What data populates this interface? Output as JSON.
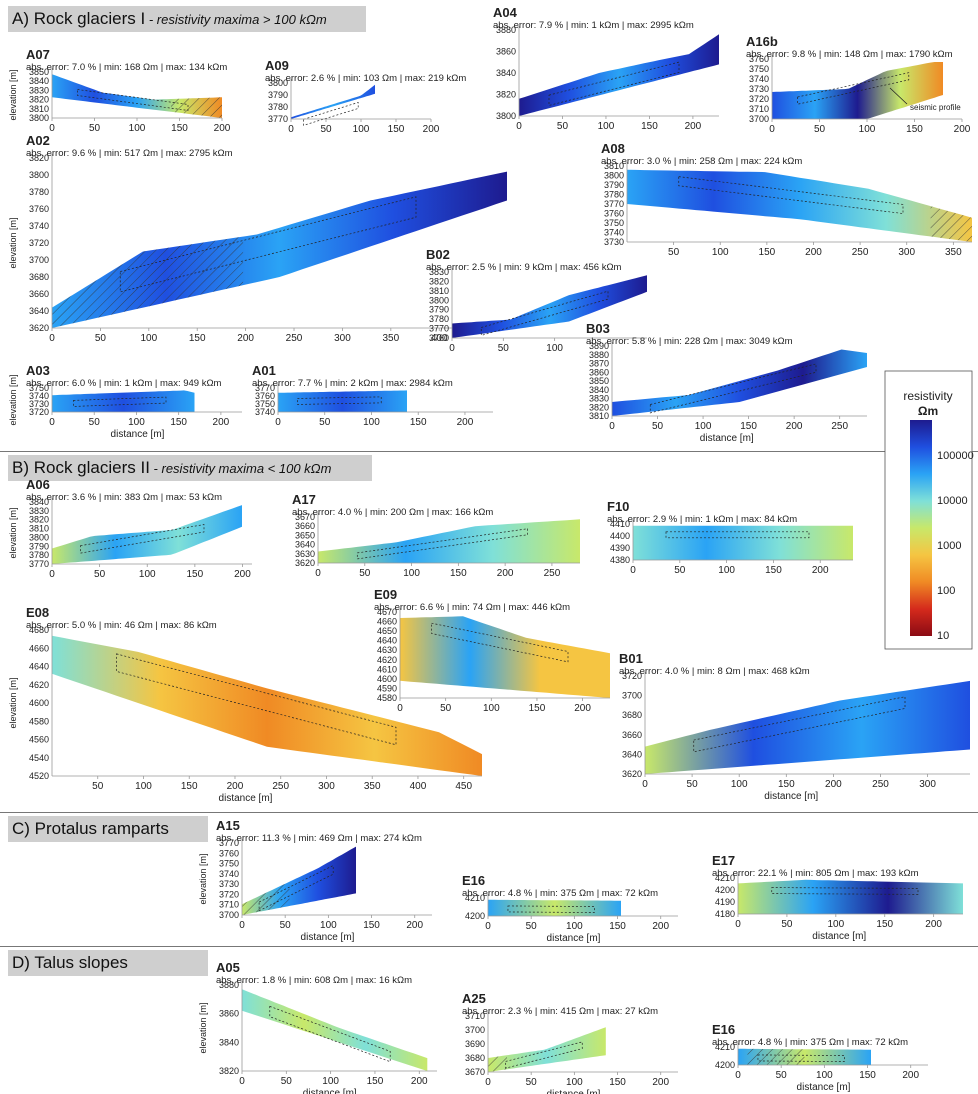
{
  "sections": [
    {
      "id": "A",
      "title": "A) Rock glaciers I",
      "subtitle": " - resistivity maxima > 100 kΩm"
    },
    {
      "id": "B",
      "title": "B) Rock glaciers II",
      "subtitle": " - resistivity maxima < 100 kΩm"
    },
    {
      "id": "C",
      "title": "C) Protalus ramparts",
      "subtitle": ""
    },
    {
      "id": "D",
      "title": "D) Talus slopes",
      "subtitle": ""
    }
  ],
  "axis_labels": {
    "elevation": "elevation [m]",
    "distance": "distance [m]"
  },
  "colorbar": {
    "title": "resistivity",
    "unit": "Ωm",
    "ticks": [
      "100000",
      "10000",
      "1000",
      "100",
      "10"
    ],
    "log_scale": true,
    "colors": [
      "#1e1b8f",
      "#1f4fe0",
      "#2aa3f5",
      "#7fe0d8",
      "#c8e86a",
      "#f5c542",
      "#f08a24",
      "#d52a1c",
      "#8a0a14"
    ]
  },
  "annotations": {
    "seismic_profile": "seismic profile"
  },
  "chart_data": [
    {
      "type": "heatmap",
      "name": "A07",
      "stats": "abs. error: 7.0 % | min: 168 Ωm | max: 134 kΩm",
      "xlim": [
        0,
        200
      ],
      "xticks": [
        0,
        50,
        100,
        150,
        200
      ],
      "yticks": [
        3800,
        3810,
        3820,
        3830,
        3840,
        3850
      ],
      "elev_label": true,
      "dist_label": false
    },
    {
      "type": "heatmap",
      "name": "A09",
      "stats": "abs. error: 2.6 % | min: 103 Ωm | max: 219 kΩm",
      "xlim": [
        0,
        200
      ],
      "xticks": [
        0,
        50,
        100,
        150,
        200
      ],
      "yticks": [
        3770,
        3780,
        3790,
        3800
      ],
      "elev_label": false,
      "dist_label": false
    },
    {
      "type": "heatmap",
      "name": "A04",
      "stats": "abs. error: 7.9 % | min: 1 kΩm | max: 2995 kΩm",
      "xlim": [
        0,
        230
      ],
      "xticks": [
        0,
        50,
        100,
        150,
        200
      ],
      "yticks": [
        3800,
        3820,
        3840,
        3860,
        3880
      ],
      "elev_label": false,
      "dist_label": false
    },
    {
      "type": "heatmap",
      "name": "A16b",
      "stats": "abs. error: 9.8 % | min: 148 Ωm | max: 1790 kΩm",
      "xlim": [
        0,
        200
      ],
      "xticks": [
        0,
        50,
        100,
        150,
        200
      ],
      "yticks": [
        3700,
        3710,
        3720,
        3730,
        3740,
        3750,
        3760
      ],
      "elev_label": false,
      "dist_label": false
    },
    {
      "type": "heatmap",
      "name": "A02",
      "stats": "abs. error: 9.6 % | min: 517 Ωm | max: 2795 kΩm",
      "xlim": [
        0,
        470
      ],
      "xticks": [
        0,
        50,
        100,
        150,
        200,
        250,
        300,
        350,
        400
      ],
      "yticks": [
        3620,
        3640,
        3660,
        3680,
        3700,
        3720,
        3740,
        3760,
        3780,
        3800,
        3820
      ],
      "elev_label": true,
      "dist_label": false
    },
    {
      "type": "heatmap",
      "name": "A08",
      "stats": "abs. error: 3.0 % | min: 258 Ωm | max: 224 kΩm",
      "xlim": [
        0,
        370
      ],
      "xticks": [
        50,
        100,
        150,
        200,
        250,
        300,
        350
      ],
      "yticks": [
        3730,
        3740,
        3750,
        3760,
        3770,
        3780,
        3790,
        3800,
        3810
      ],
      "elev_label": false,
      "dist_label": false
    },
    {
      "type": "heatmap",
      "name": "B02",
      "stats": "abs. error: 2.5 % | min: 9 kΩm | max: 456 kΩm",
      "xlim": [
        0,
        190
      ],
      "xticks": [
        0,
        50,
        100
      ],
      "yticks": [
        3760,
        3770,
        3780,
        3790,
        3800,
        3810,
        3820,
        3830
      ],
      "elev_label": false,
      "dist_label": false
    },
    {
      "type": "heatmap",
      "name": "B03",
      "stats": "abs. error: 5.8 % | min: 228 Ωm | max: 3049 kΩm",
      "xlim": [
        0,
        280
      ],
      "xticks": [
        0,
        50,
        100,
        150,
        200,
        250
      ],
      "yticks": [
        3810,
        3820,
        3830,
        3840,
        3850,
        3860,
        3870,
        3880,
        3890
      ],
      "elev_label": false,
      "dist_label": true
    },
    {
      "type": "heatmap",
      "name": "A03",
      "stats": "abs. error: 6.0 % | min: 1 kΩm | max: 949 kΩm",
      "xlim": [
        0,
        225
      ],
      "xticks": [
        0,
        50,
        100,
        150,
        200
      ],
      "yticks": [
        3720,
        3730,
        3740,
        3750
      ],
      "elev_label": true,
      "dist_label": true
    },
    {
      "type": "heatmap",
      "name": "A01",
      "stats": "abs. error: 7.7 % | min: 2 kΩm | max: 2984 kΩm",
      "xlim": [
        0,
        230
      ],
      "xticks": [
        0,
        50,
        100,
        150,
        200
      ],
      "yticks": [
        3740,
        3750,
        3760,
        3770
      ],
      "elev_label": false,
      "dist_label": false
    },
    {
      "type": "heatmap",
      "name": "A06",
      "stats": "abs. error: 3.6 % | min: 383 Ωm | max: 53 kΩm",
      "xlim": [
        0,
        210
      ],
      "xticks": [
        0,
        50,
        100,
        150,
        200
      ],
      "yticks": [
        3770,
        3780,
        3790,
        3800,
        3810,
        3820,
        3830,
        3840
      ],
      "elev_label": true,
      "dist_label": false
    },
    {
      "type": "heatmap",
      "name": "A17",
      "stats": "abs. error: 4.0 % | min: 200 Ωm | max: 166 kΩm",
      "xlim": [
        0,
        280
      ],
      "xticks": [
        0,
        50,
        100,
        150,
        200,
        250
      ],
      "yticks": [
        3620,
        3630,
        3640,
        3650,
        3660,
        3670
      ],
      "elev_label": false,
      "dist_label": false
    },
    {
      "type": "heatmap",
      "name": "F10",
      "stats": "abs. error: 2.9 % | min: 1 kΩm | max: 84 kΩm",
      "xlim": [
        0,
        235
      ],
      "xticks": [
        0,
        50,
        100,
        150,
        200
      ],
      "yticks": [
        4380,
        4390,
        4400,
        4410
      ],
      "elev_label": false,
      "dist_label": false
    },
    {
      "type": "heatmap",
      "name": "E08",
      "stats": "abs. error: 5.0 % | min: 46 Ωm | max: 86 kΩm",
      "xlim": [
        0,
        470
      ],
      "xticks": [
        50,
        100,
        150,
        200,
        250,
        300,
        350,
        400,
        450
      ],
      "yticks": [
        4520,
        4540,
        4560,
        4580,
        4600,
        4620,
        4640,
        4660,
        4680
      ],
      "elev_label": true,
      "dist_label": true
    },
    {
      "type": "heatmap",
      "name": "E09",
      "stats": "abs. error: 6.6 % | min: 74 Ωm | max: 446 kΩm",
      "xlim": [
        0,
        230
      ],
      "xticks": [
        0,
        50,
        100,
        150,
        200
      ],
      "yticks": [
        4580,
        4590,
        4600,
        4610,
        4620,
        4630,
        4640,
        4650,
        4660,
        4670
      ],
      "elev_label": false,
      "dist_label": false
    },
    {
      "type": "heatmap",
      "name": "B01",
      "stats": "abs. error: 4.0 % | min: 8 Ωm | max: 468 kΩm",
      "xlim": [
        0,
        345
      ],
      "xticks": [
        0,
        50,
        100,
        150,
        200,
        250,
        300
      ],
      "yticks": [
        3620,
        3640,
        3660,
        3680,
        3700,
        3720
      ],
      "elev_label": false,
      "dist_label": true
    },
    {
      "type": "heatmap",
      "name": "A15",
      "stats": "abs. error: 11.3 % | min: 469 Ωm | max: 274 kΩm",
      "xlim": [
        0,
        220
      ],
      "xticks": [
        0,
        50,
        100,
        150,
        200
      ],
      "yticks": [
        3700,
        3710,
        3720,
        3730,
        3740,
        3750,
        3760,
        3770
      ],
      "elev_label": true,
      "dist_label": true
    },
    {
      "type": "heatmap",
      "name": "E16",
      "stats": "abs. error: 4.8 % | min: 375 Ωm | max: 72 kΩm",
      "xlim": [
        0,
        220
      ],
      "xticks": [
        0,
        50,
        100,
        150,
        200
      ],
      "yticks": [
        4200,
        4210
      ],
      "elev_label": false,
      "dist_label": true
    },
    {
      "type": "heatmap",
      "name": "E17",
      "stats": "abs. error: 22.1 % | min: 805 Ωm | max: 193 kΩm",
      "xlim": [
        0,
        230
      ],
      "xticks": [
        0,
        50,
        100,
        150,
        200
      ],
      "yticks": [
        4180,
        4190,
        4200,
        4210
      ],
      "elev_label": false,
      "dist_label": true
    },
    {
      "type": "heatmap",
      "name": "A05",
      "stats": "abs. error: 1.8 % | min: 608 Ωm | max: 16 kΩm",
      "xlim": [
        0,
        220
      ],
      "xticks": [
        0,
        50,
        100,
        150,
        200
      ],
      "yticks": [
        3820,
        3840,
        3860,
        3880
      ],
      "elev_label": true,
      "dist_label": true
    },
    {
      "type": "heatmap",
      "name": "A25",
      "stats": "abs. error: 2.3 % | min: 415 Ωm | max: 27 kΩm",
      "xlim": [
        0,
        220
      ],
      "xticks": [
        0,
        50,
        100,
        150,
        200
      ],
      "yticks": [
        3670,
        3680,
        3690,
        3700,
        3710
      ],
      "elev_label": false,
      "dist_label": true
    },
    {
      "type": "heatmap",
      "name": "E16",
      "stats": "abs. error: 4.8 % | min: 375 Ωm | max: 72 kΩm",
      "xlim": [
        0,
        220
      ],
      "xticks": [
        0,
        50,
        100,
        150,
        200
      ],
      "yticks": [
        4200,
        4210
      ],
      "elev_label": false,
      "dist_label": true
    }
  ]
}
